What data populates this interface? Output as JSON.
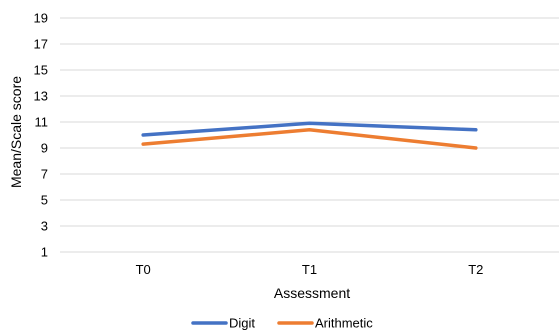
{
  "chart_data": {
    "type": "line",
    "title": "",
    "xlabel": "Assessment",
    "ylabel": "Mean/Scale score",
    "categories": [
      "T0",
      "T1",
      "T2"
    ],
    "ylim": [
      1,
      19
    ],
    "yticks": [
      1,
      3,
      5,
      7,
      9,
      11,
      13,
      15,
      17,
      19
    ],
    "grid": true,
    "legend": "bottom",
    "series": [
      {
        "name": "Digit",
        "color": "#4472c4",
        "values": [
          10.0,
          10.9,
          10.4
        ]
      },
      {
        "name": "Arithmetic",
        "color": "#ed7d31",
        "values": [
          9.3,
          10.4,
          9.0
        ]
      }
    ]
  }
}
